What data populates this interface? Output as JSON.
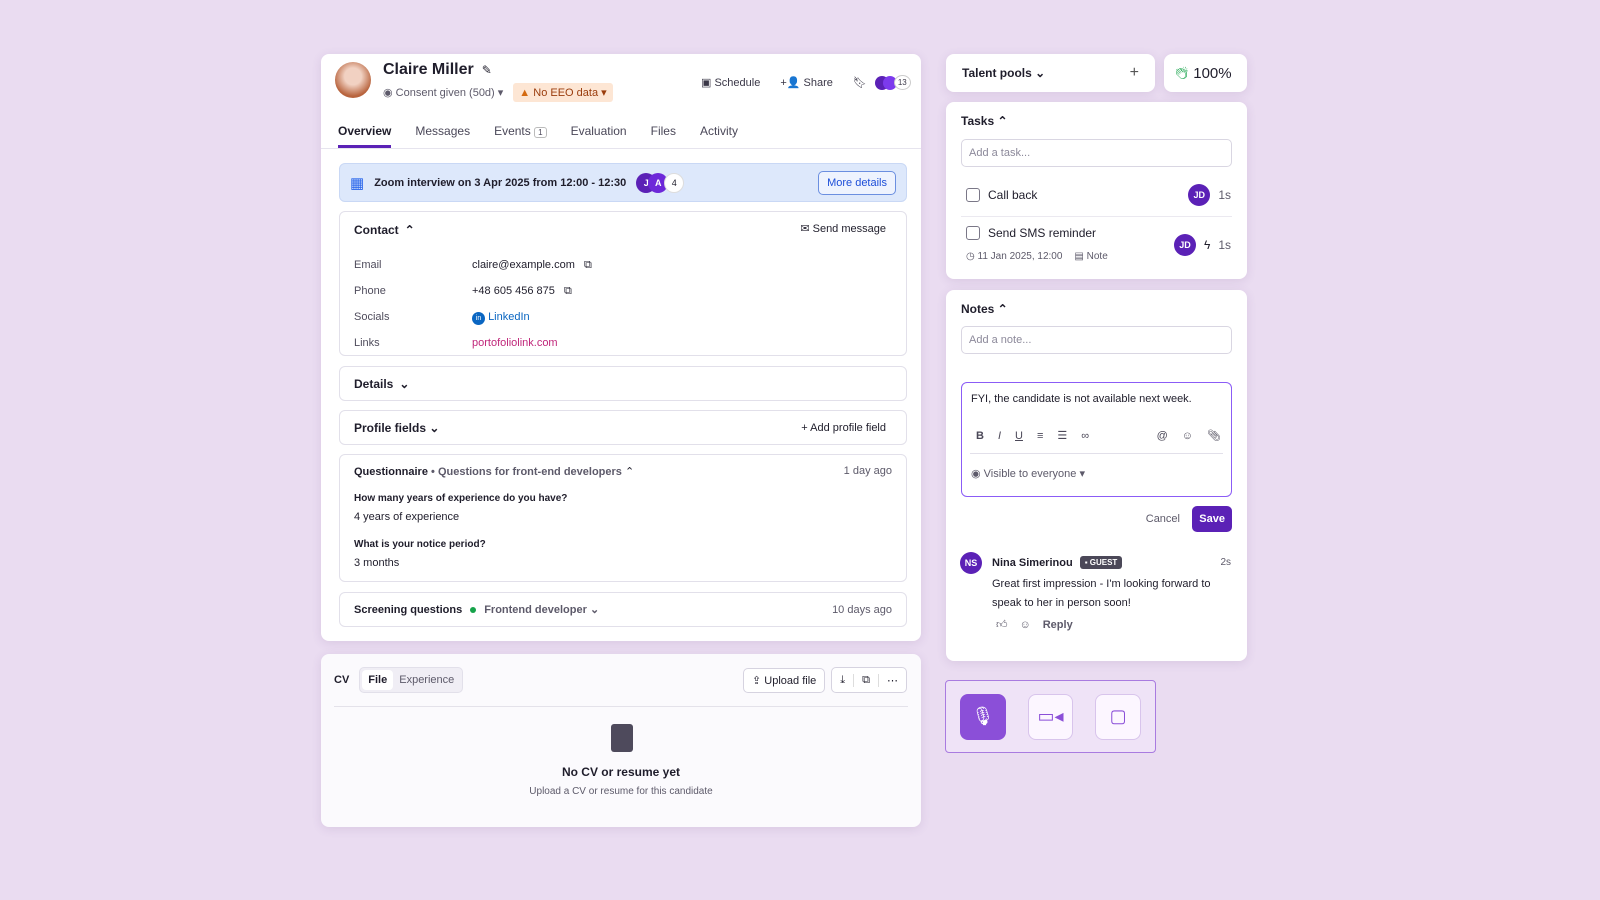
{
  "header": {
    "name": "Claire Miller",
    "consent": "Consent given (50d)",
    "eeo": "No EEO data",
    "schedule": "Schedule",
    "share": "Share",
    "watchers_count": "13"
  },
  "tabs": [
    {
      "label": "Overview"
    },
    {
      "label": "Messages"
    },
    {
      "label": "Events",
      "badge": "1"
    },
    {
      "label": "Evaluation"
    },
    {
      "label": "Files"
    },
    {
      "label": "Activity"
    }
  ],
  "event": {
    "text": "Zoom interview on 3 Apr 2025 from 12:00 - 12:30",
    "avatars": [
      "J",
      "A"
    ],
    "more_count": "4",
    "button": "More details"
  },
  "contact": {
    "title": "Contact",
    "send": "Send message",
    "fields": [
      {
        "label": "Email",
        "value": "claire@example.com"
      },
      {
        "label": "Phone",
        "value": "+48 605 456 875"
      },
      {
        "label": "Socials",
        "value": "LinkedIn"
      },
      {
        "label": "Links",
        "value": "portofoliolink.com"
      }
    ]
  },
  "details": {
    "title": "Details"
  },
  "profile_fields": {
    "title": "Profile fields",
    "add": "Add profile field"
  },
  "questionnaire": {
    "title": "Questionnaire",
    "subtitle": "• Questions for front-end developers",
    "time": "1 day ago",
    "items": [
      {
        "q": "How many years of experience do you have?",
        "a": "4 years of experience"
      },
      {
        "q": "What is your notice period?",
        "a": "3 months"
      }
    ]
  },
  "screening": {
    "title": "Screening questions",
    "role": "Frontend developer",
    "time": "10 days ago",
    "status_color": "#16a34a"
  },
  "cv": {
    "title": "CV",
    "tabs": [
      "File",
      "Experience"
    ],
    "upload": "Upload file",
    "empty_title": "No CV or resume yet",
    "empty_sub": "Upload a CV or resume for this candidate"
  },
  "talent_pools": {
    "label": "Talent pools"
  },
  "score": {
    "value": "100%"
  },
  "tasks": {
    "title": "Tasks",
    "placeholder": "Add a task...",
    "items": [
      {
        "label": "Call back",
        "avatar": "JD",
        "time": "1s"
      },
      {
        "label": "Send SMS reminder",
        "avatar": "JD",
        "time": "1s",
        "due": "11 Jan 2025, 12:00",
        "note": "Note"
      }
    ]
  },
  "notes": {
    "title": "Notes",
    "placeholder": "Add a note...",
    "draft": "FYI, the candidate is not available next week.",
    "visibility": "Visible to everyone",
    "cancel": "Cancel",
    "save": "Save",
    "comment": {
      "avatar": "NS",
      "author": "Nina Simerinou",
      "badge": "GUEST",
      "time": "2s",
      "text": "Great first impression - I'm looking forward to speak to her in person soon!",
      "reply": "Reply"
    }
  },
  "colors": {
    "accent": "#5b21b6",
    "background": "#eadcf1",
    "link": "#c0267a",
    "event_bg": "#dde8fb"
  }
}
